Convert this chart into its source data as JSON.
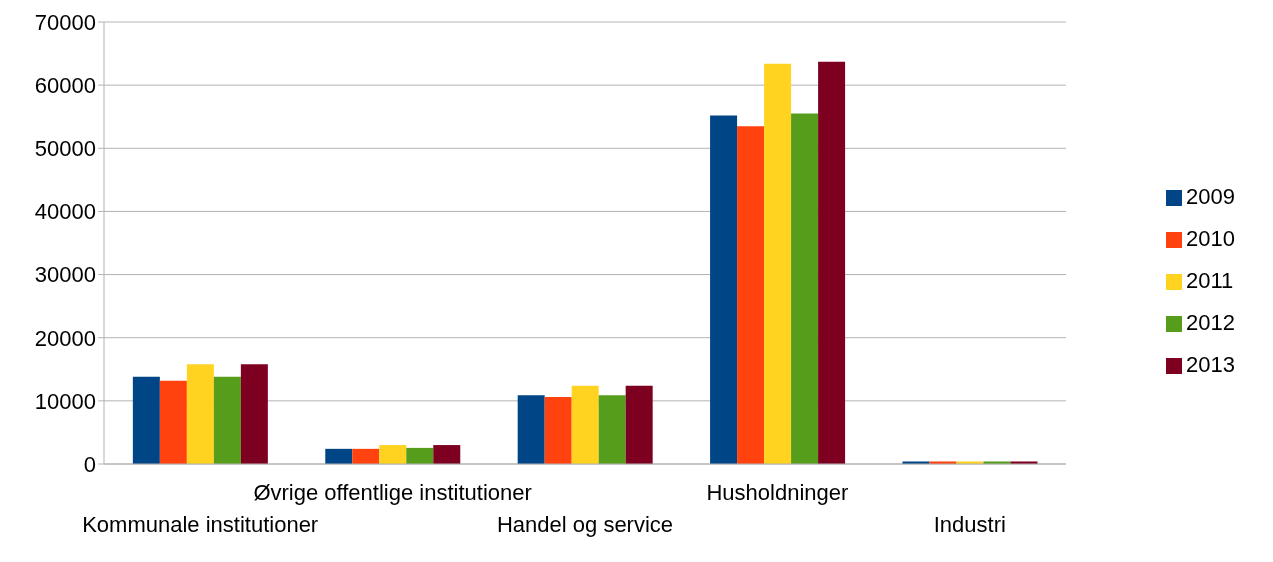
{
  "chart_data": {
    "type": "bar",
    "categories": [
      "Kommunale institutioner",
      "Øvrige offentlige institutioner",
      "Handel og service",
      "Husholdninger",
      "Industri"
    ],
    "series": [
      {
        "name": "2009",
        "color": "#004586",
        "values": [
          13800,
          2400,
          10900,
          55200,
          400
        ]
      },
      {
        "name": "2010",
        "color": "#ff420e",
        "values": [
          13200,
          2400,
          10600,
          53500,
          400
        ]
      },
      {
        "name": "2011",
        "color": "#ffd320",
        "values": [
          15800,
          3000,
          12400,
          63400,
          400
        ]
      },
      {
        "name": "2012",
        "color": "#579d1c",
        "values": [
          13800,
          2550,
          10900,
          55500,
          400
        ]
      },
      {
        "name": "2013",
        "color": "#7e0021",
        "values": [
          15800,
          3000,
          12400,
          63700,
          400
        ]
      }
    ],
    "ylim": [
      0,
      70000
    ],
    "yticks": [
      0,
      10000,
      20000,
      30000,
      40000,
      50000,
      60000,
      70000
    ],
    "grid": "y",
    "legend": "right"
  }
}
